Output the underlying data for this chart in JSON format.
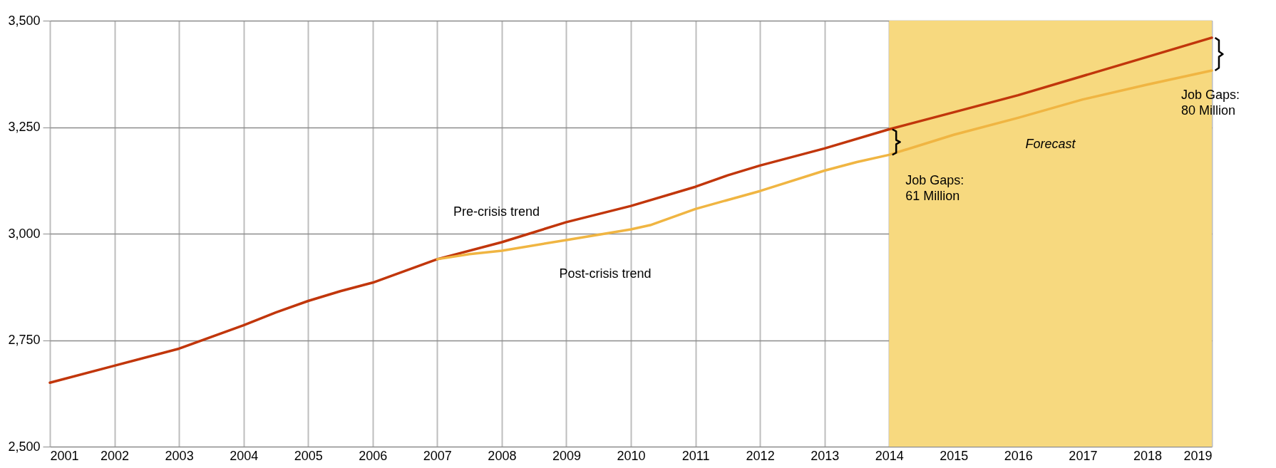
{
  "chart_data": {
    "type": "line",
    "xlim": [
      2001,
      2019
    ],
    "xticks": [
      2001,
      2002,
      2003,
      2004,
      2005,
      2006,
      2007,
      2008,
      2009,
      2010,
      2011,
      2012,
      2013,
      2014,
      2015,
      2016,
      2017,
      2018,
      2019
    ],
    "ylim": [
      2500,
      3500
    ],
    "yticks": [
      {
        "value": 2500,
        "label": "2,500"
      },
      {
        "value": 2750,
        "label": "2,750"
      },
      {
        "value": 3000,
        "label": "3,000"
      },
      {
        "value": 3250,
        "label": "3,250"
      },
      {
        "value": 3500,
        "label": "3,500"
      }
    ],
    "grid": true,
    "series": [
      {
        "name": "Pre-crisis trend",
        "color": "#c1360b",
        "x": [
          2001,
          2002,
          2003,
          2004,
          2004.5,
          2005,
          2005.5,
          2006,
          2007,
          2008,
          2009,
          2010,
          2011,
          2011.5,
          2012,
          2013,
          2014,
          2015,
          2016,
          2017,
          2018,
          2019
        ],
        "values": [
          2650,
          2690,
          2730,
          2785,
          2815,
          2842,
          2865,
          2885,
          2940,
          2980,
          3027,
          3065,
          3110,
          3137,
          3160,
          3200,
          3245,
          3285,
          3325,
          3370,
          3415,
          3460
        ]
      },
      {
        "name": "Post-crisis trend",
        "color": "#f0b542",
        "x": [
          2007,
          2007.5,
          2008,
          2009,
          2010,
          2010.3,
          2011,
          2012,
          2013,
          2013.5,
          2014,
          2015,
          2016,
          2017,
          2018,
          2019
        ],
        "values": [
          2940,
          2952,
          2960,
          2985,
          3010,
          3020,
          3058,
          3100,
          3148,
          3168,
          3185,
          3232,
          3272,
          3315,
          3350,
          3383
        ]
      }
    ],
    "bands": [
      {
        "axis": "x",
        "from": 2014,
        "to": 2019,
        "label": "Forecast",
        "color": "#f7d97f"
      }
    ],
    "annotations": [
      "Job Gaps:\n61 Million",
      "Job Gaps:\n80 Million"
    ]
  }
}
